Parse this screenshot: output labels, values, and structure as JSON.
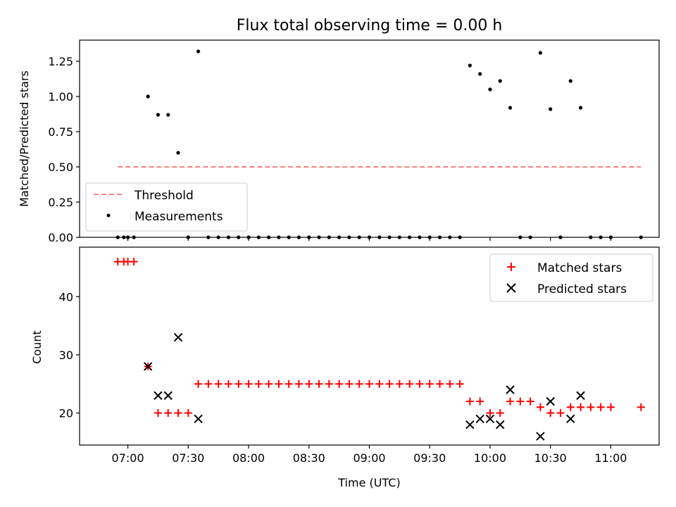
{
  "chart_data": [
    {
      "type": "scatter",
      "title": "Flux total observing time = 0.00 h",
      "xlabel": "",
      "ylabel": "Matched/Predicted stars",
      "xlim": [
        "06:36",
        "11:24"
      ],
      "ylim": [
        0,
        1.4
      ],
      "yticks": [
        0.0,
        0.25,
        0.5,
        0.75,
        1.0,
        1.25
      ],
      "ytick_labels": [
        "0.00",
        "0.25",
        "0.50",
        "0.75",
        "1.00",
        "1.25"
      ],
      "legend_position": "lower-left",
      "series": [
        {
          "name": "Threshold",
          "kind": "dashed-line",
          "color": "#ff7f7f",
          "x": [
            "06:55",
            "11:15"
          ],
          "y": [
            0.5,
            0.5
          ]
        },
        {
          "name": "Measurements",
          "kind": "dot",
          "color": "#000000",
          "x": [
            "06:55",
            "06:58",
            "07:00",
            "07:03",
            "07:10",
            "07:15",
            "07:20",
            "07:25",
            "07:30",
            "07:35",
            "07:40",
            "07:45",
            "07:50",
            "07:55",
            "08:00",
            "08:05",
            "08:10",
            "08:15",
            "08:20",
            "08:25",
            "08:30",
            "08:35",
            "08:40",
            "08:45",
            "08:50",
            "08:55",
            "09:00",
            "09:05",
            "09:10",
            "09:15",
            "09:20",
            "09:25",
            "09:30",
            "09:35",
            "09:40",
            "09:45",
            "09:50",
            "09:55",
            "10:00",
            "10:05",
            "10:10",
            "10:15",
            "10:20",
            "10:25",
            "10:30",
            "10:35",
            "10:40",
            "10:45",
            "10:50",
            "10:55",
            "11:00",
            "11:15"
          ],
          "y": [
            0,
            0,
            0,
            0,
            1.0,
            0.87,
            0.87,
            0.6,
            0,
            1.32,
            0,
            0,
            0,
            0,
            0,
            0,
            0,
            0,
            0,
            0,
            0,
            0,
            0,
            0,
            0,
            0,
            0,
            0,
            0,
            0,
            0,
            0,
            0,
            0,
            0,
            0,
            1.22,
            1.16,
            1.05,
            1.11,
            0.92,
            0,
            0,
            1.31,
            0.91,
            0,
            1.11,
            0.92,
            0,
            0,
            0,
            0
          ]
        }
      ]
    },
    {
      "type": "scatter",
      "title": "",
      "xlabel": "Time (UTC)",
      "ylabel": "Count",
      "xlim": [
        "06:36",
        "11:24"
      ],
      "ylim": [
        14.5,
        48.5
      ],
      "xticks": [
        "07:00",
        "07:30",
        "08:00",
        "08:30",
        "09:00",
        "09:30",
        "10:00",
        "10:30",
        "11:00"
      ],
      "yticks": [
        20,
        30,
        40
      ],
      "ytick_labels": [
        "20",
        "30",
        "40"
      ],
      "legend_position": "upper-right",
      "series": [
        {
          "name": "Matched stars",
          "marker": "plus",
          "color": "#ff0000",
          "x": [
            "06:55",
            "06:58",
            "07:00",
            "07:03",
            "07:10",
            "07:15",
            "07:20",
            "07:25",
            "07:30",
            "07:35",
            "07:40",
            "07:45",
            "07:50",
            "07:55",
            "08:00",
            "08:05",
            "08:10",
            "08:15",
            "08:20",
            "08:25",
            "08:30",
            "08:35",
            "08:40",
            "08:45",
            "08:50",
            "08:55",
            "09:00",
            "09:05",
            "09:10",
            "09:15",
            "09:20",
            "09:25",
            "09:30",
            "09:35",
            "09:40",
            "09:45",
            "09:50",
            "09:55",
            "10:00",
            "10:05",
            "10:10",
            "10:15",
            "10:20",
            "10:25",
            "10:30",
            "10:35",
            "10:40",
            "10:45",
            "10:50",
            "10:55",
            "11:00",
            "11:15"
          ],
          "y": [
            46,
            46,
            46,
            46,
            28,
            20,
            20,
            20,
            20,
            25,
            25,
            25,
            25,
            25,
            25,
            25,
            25,
            25,
            25,
            25,
            25,
            25,
            25,
            25,
            25,
            25,
            25,
            25,
            25,
            25,
            25,
            25,
            25,
            25,
            25,
            25,
            22,
            22,
            20,
            20,
            22,
            22,
            22,
            21,
            20,
            20,
            21,
            21,
            21,
            21,
            21,
            21
          ]
        },
        {
          "name": "Predicted stars",
          "marker": "x",
          "color": "#000000",
          "x": [
            "07:10",
            "07:15",
            "07:20",
            "07:25",
            "07:35",
            "09:50",
            "09:55",
            "10:00",
            "10:05",
            "10:10",
            "10:25",
            "10:30",
            "10:40",
            "10:45"
          ],
          "y": [
            28,
            23,
            23,
            33,
            19,
            18,
            19,
            19,
            18,
            24,
            16,
            22,
            19,
            23
          ]
        }
      ]
    }
  ]
}
